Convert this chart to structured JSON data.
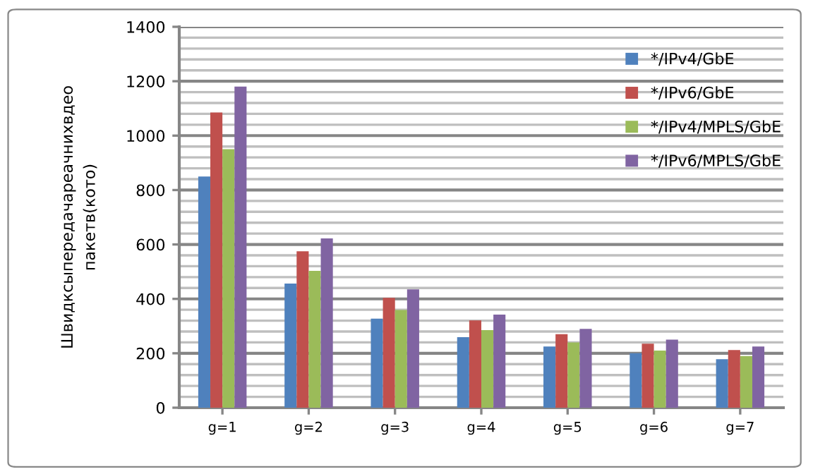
{
  "chart_data": {
    "type": "bar",
    "ylabel": "Швидксыпередачареачнихвдео\nпакетв(кото)",
    "categories": [
      "g=1",
      "g=2",
      "g=3",
      "g=4",
      "g=5",
      "g=6",
      "g=7"
    ],
    "series": [
      {
        "name": "*/IPv4/GbE",
        "color": "#4f81bd",
        "values": [
          850,
          456,
          327,
          259,
          225,
          200,
          178
        ]
      },
      {
        "name": "*/IPv6/GbE",
        "color": "#c0504d",
        "values": [
          1085,
          575,
          404,
          321,
          270,
          235,
          212
        ]
      },
      {
        "name": "*/IPv4/MPLS/GbE",
        "color": "#9bbb59",
        "values": [
          950,
          503,
          359,
          285,
          240,
          210,
          190
        ]
      },
      {
        "name": "*/IPv6/MPLS/GbE",
        "color": "#8064a2",
        "values": [
          1180,
          622,
          435,
          342,
          290,
          250,
          225
        ]
      }
    ],
    "ylim": [
      0,
      1400
    ],
    "yticks": [
      0,
      200,
      400,
      600,
      800,
      1000,
      1200,
      1400
    ],
    "grid": "y",
    "legend": "top right"
  }
}
